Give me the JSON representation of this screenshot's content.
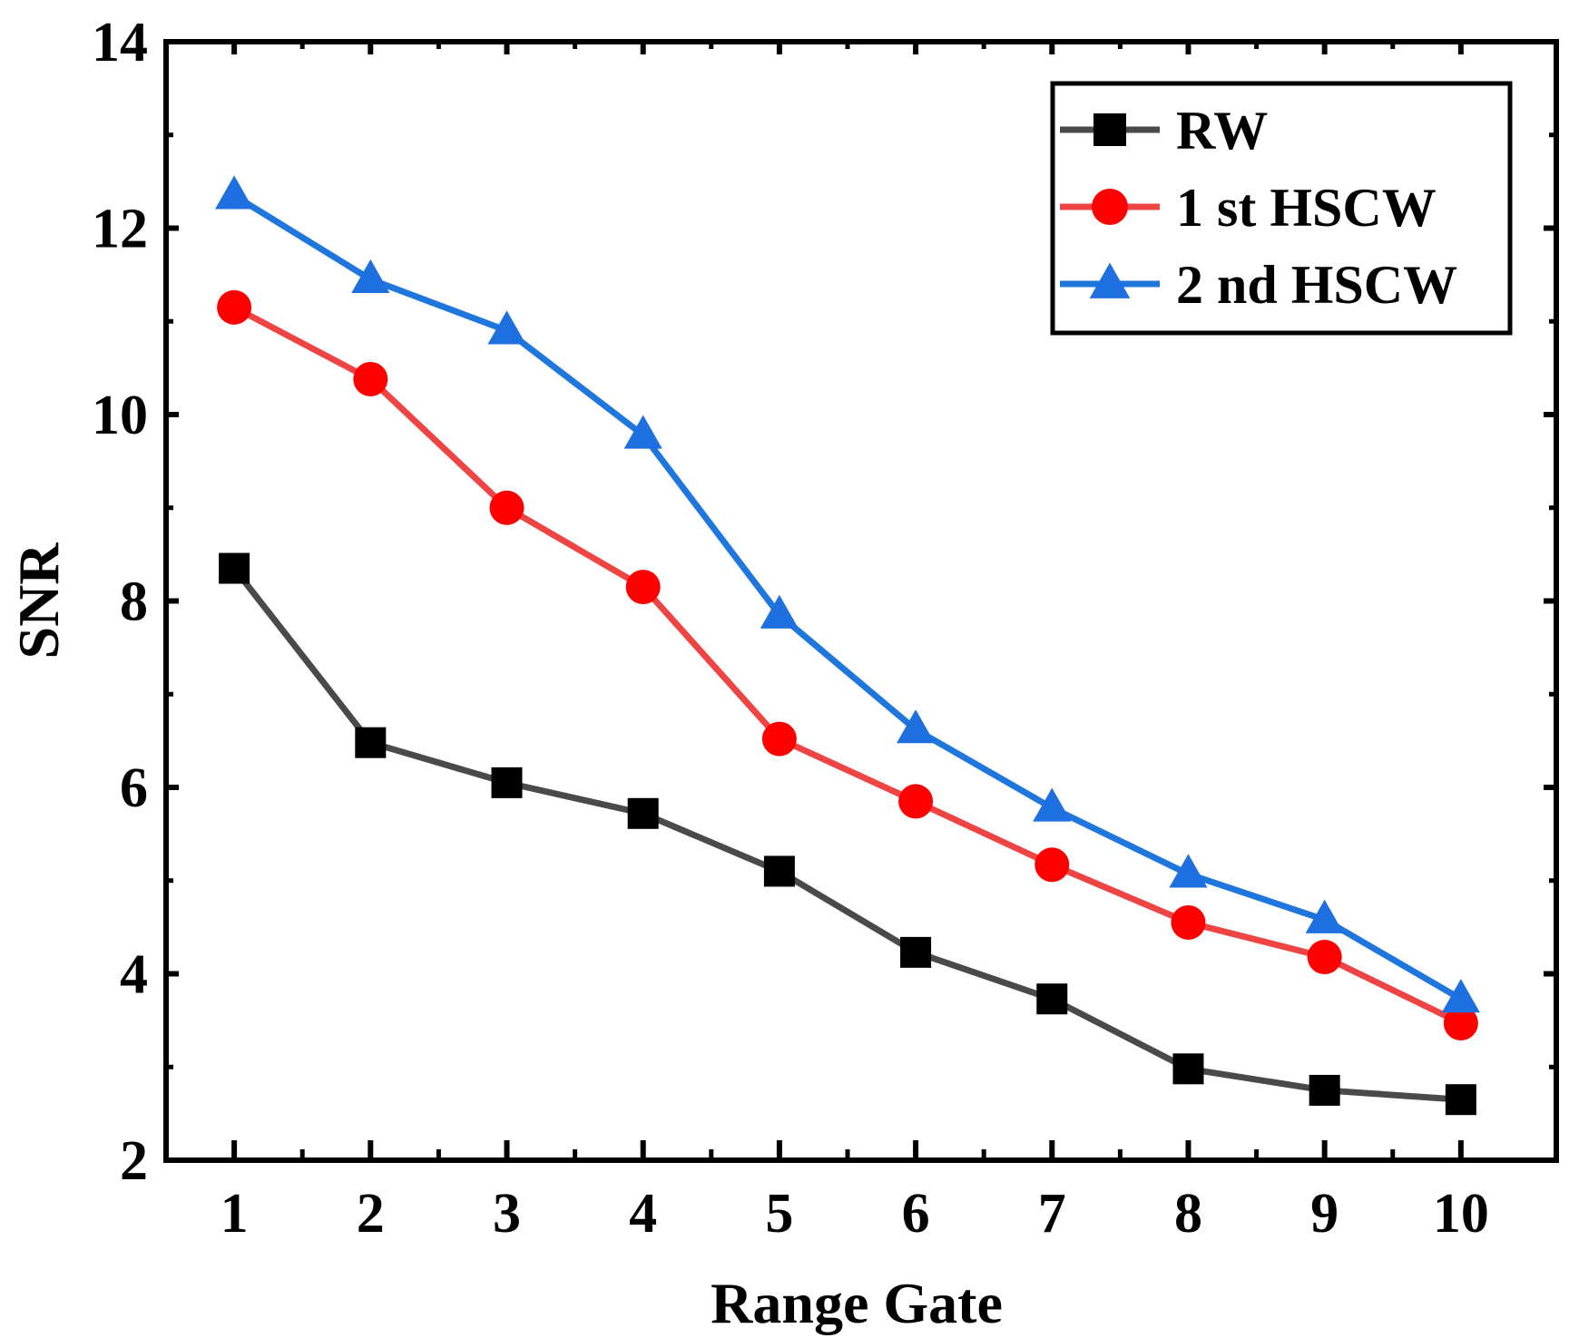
{
  "chart_data": {
    "type": "line",
    "title": "",
    "xlabel": "Range Gate",
    "ylabel": "SNR",
    "x": [
      1,
      2,
      3,
      4,
      5,
      6,
      7,
      8,
      9,
      10
    ],
    "xticks": [
      "1",
      "2",
      "3",
      "4",
      "5",
      "6",
      "7",
      "8",
      "9",
      "10"
    ],
    "xlim": [
      0.5,
      10.7
    ],
    "ylim": [
      2,
      14
    ],
    "yticks": [
      "2",
      "4",
      "6",
      "8",
      "10",
      "12",
      "14"
    ],
    "legend_position": "top-right",
    "grid": false,
    "series": [
      {
        "name": "RW",
        "marker": "square",
        "color": "#4a4a4a",
        "marker_color": "#000000",
        "values": [
          8.35,
          6.48,
          6.05,
          5.72,
          5.1,
          4.23,
          3.73,
          2.98,
          2.75,
          2.65
        ]
      },
      {
        "name": "1 st HSCW",
        "marker": "circle",
        "color": "#ee4444",
        "marker_color": "#ff0000",
        "values": [
          11.15,
          10.38,
          9.0,
          8.15,
          6.52,
          5.85,
          5.17,
          4.55,
          4.18,
          3.47
        ]
      },
      {
        "name": "2 nd HSCW",
        "marker": "triangle",
        "color": "#1f77dd",
        "marker_color": "#1e6fe0",
        "values": [
          12.35,
          11.45,
          10.9,
          9.78,
          7.85,
          6.62,
          5.78,
          5.07,
          4.58,
          3.73
        ]
      }
    ]
  }
}
